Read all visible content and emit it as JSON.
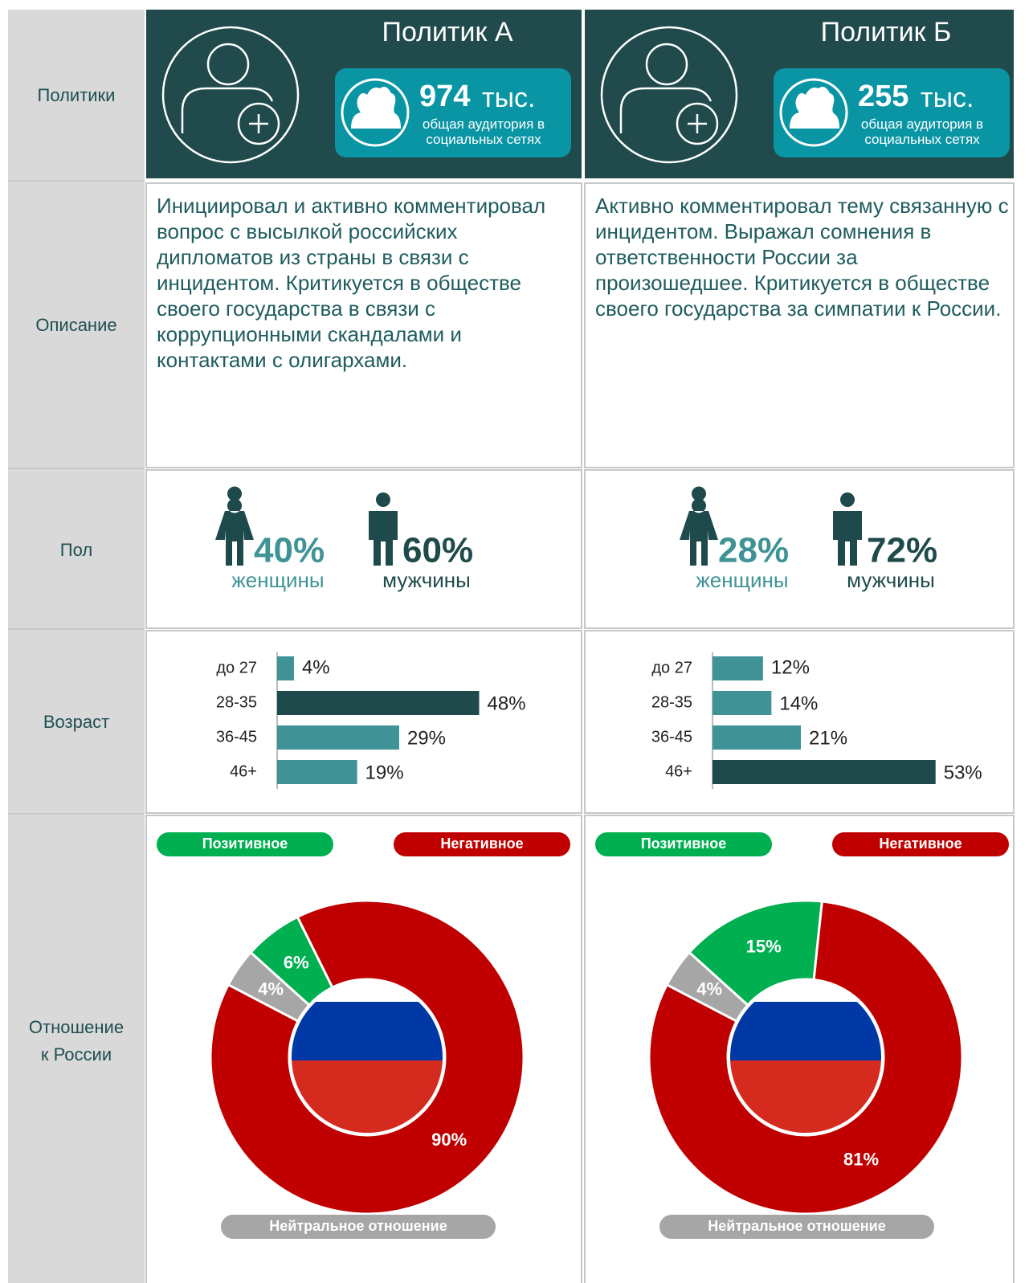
{
  "row_labels": [
    "Политики",
    "Описание",
    "Пол",
    "Возраст",
    "Отношение к России"
  ],
  "politicians": [
    {
      "name": "Политик А",
      "audience_value": "974",
      "audience_unit": "тыс.",
      "audience_caption": "общая аудитория в социальных сетях",
      "description": "Инициировал и активно комментировал вопрос с высылкой российских дипломатов из страны в связи с инцидентом. Критикуется в обществе своего государства в связи с коррупционными скандалами и контактами с олигархами.",
      "gender": {
        "female": "40%",
        "female_label": "женщины",
        "male": "60%",
        "male_label": "мужчины"
      },
      "age": {
        "type": "bar",
        "categories": [
          "до 27",
          "28-35",
          "36-45",
          "46+"
        ],
        "values": [
          4,
          48,
          29,
          19
        ],
        "value_labels": [
          "4%",
          "48%",
          "29%",
          "19%"
        ],
        "colors": [
          "#3f9396",
          "#1f4a4b",
          "#3f9396",
          "#3f9396"
        ],
        "xlim": [
          0,
          50
        ]
      },
      "attitude": {
        "type": "pie",
        "categories": [
          "Позитивное",
          "Негативное",
          "Нейтральное отношение"
        ],
        "values": [
          6,
          90,
          4
        ],
        "value_labels": [
          "6%",
          "90%",
          "4%"
        ],
        "colors": [
          "#00b050",
          "#c00000",
          "#a6a6a6"
        ]
      }
    },
    {
      "name": "Политик Б",
      "audience_value": "255",
      "audience_unit": "тыс.",
      "audience_caption": "общая аудитория в социальных сетях",
      "description": "Активно комментировал тему связанную с инцидентом. Выражал сомнения в ответственности России за произошедшее. Критикуется в обществе своего государства за симпатии к России.",
      "gender": {
        "female": "28%",
        "female_label": "женщины",
        "male": "72%",
        "male_label": "мужчины"
      },
      "age": {
        "type": "bar",
        "categories": [
          "до 27",
          "28-35",
          "36-45",
          "46+"
        ],
        "values": [
          12,
          14,
          21,
          53
        ],
        "value_labels": [
          "12%",
          "14%",
          "21%",
          "53%"
        ],
        "colors": [
          "#3f9396",
          "#3f9396",
          "#3f9396",
          "#1f4a4b"
        ],
        "xlim": [
          0,
          50
        ]
      },
      "attitude": {
        "type": "pie",
        "categories": [
          "Позитивное",
          "Негативное",
          "Нейтральное отношение"
        ],
        "values": [
          15,
          81,
          4
        ],
        "value_labels": [
          "15%",
          "81%",
          "4%"
        ],
        "colors": [
          "#00b050",
          "#c00000",
          "#a6a6a6"
        ]
      }
    }
  ]
}
